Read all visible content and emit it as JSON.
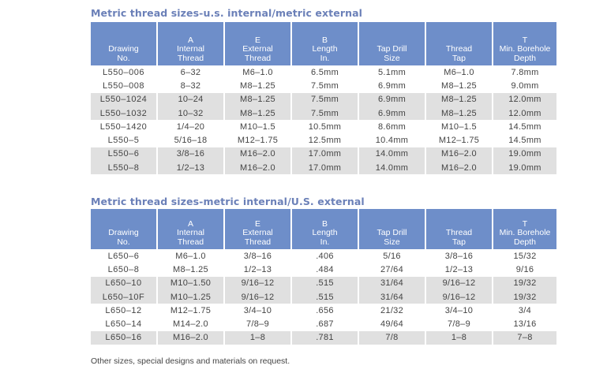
{
  "colors": {
    "title": "#6b80b8",
    "header_bg": "#6e8ec9",
    "row_shade": "#e0e0e0"
  },
  "tables": [
    {
      "title": "Metric thread sizes-u.s. internal/metric external",
      "columns": [
        [
          "Drawing",
          "No."
        ],
        [
          "A",
          "Internal",
          "Thread"
        ],
        [
          "E",
          "External",
          "Thread"
        ],
        [
          "B",
          "Length",
          "In."
        ],
        [
          "Tap Drill",
          "Size"
        ],
        [
          "Thread",
          "Tap"
        ],
        [
          "T",
          "Min. Borehole",
          "Depth"
        ]
      ],
      "rows": [
        [
          "L550-006",
          "6-32",
          "M6-1.0",
          "6.5mm",
          "5.1mm",
          "M6-1.0",
          "7.8mm"
        ],
        [
          "L550-008",
          "8-32",
          "M8-1.25",
          "7.5mm",
          "6.9mm",
          "M8-1.25",
          "9.0mm"
        ],
        [
          "L550-1024",
          "10-24",
          "M8-1.25",
          "7.5mm",
          "6.9mm",
          "M8-1.25",
          "12.0mm"
        ],
        [
          "L550-1032",
          "10-32",
          "M8-1.25",
          "7.5mm",
          "6.9mm",
          "M8-1.25",
          "12.0mm"
        ],
        [
          "L550-1420",
          "1/4-20",
          "M10-1.5",
          "10.5mm",
          "8.6mm",
          "M10-1.5",
          "14.5mm"
        ],
        [
          "L550-5",
          "5/16-18",
          "M12-1.75",
          "12.5mm",
          "10.4mm",
          "M12-1.75",
          "14.5mm"
        ],
        [
          "L550-6",
          "3/8-16",
          "M16-2.0",
          "17.0mm",
          "14.0mm",
          "M16-2.0",
          "19.0mm"
        ],
        [
          "L550-8",
          "1/2-13",
          "M16-2.0",
          "17.0mm",
          "14.0mm",
          "M16-2.0",
          "19.0mm"
        ]
      ],
      "shaded_rows": [
        2,
        3,
        6,
        7
      ]
    },
    {
      "title": "Metric thread sizes-metric internal/U.S. external",
      "columns": [
        [
          "Drawing",
          "No."
        ],
        [
          "A",
          "Internal",
          "Thread"
        ],
        [
          "E",
          "External",
          "Thread"
        ],
        [
          "B",
          "Length",
          "In."
        ],
        [
          "Tap Drill",
          "Size"
        ],
        [
          "Thread",
          "Tap"
        ],
        [
          "T",
          "Min. Borehole",
          "Depth"
        ]
      ],
      "rows": [
        [
          "L650-6",
          "M6-1.0",
          "3/8-16",
          ".406",
          "5/16",
          "3/8-16",
          "15/32"
        ],
        [
          "L650-8",
          "M8-1.25",
          "1/2-13",
          ".484",
          "27/64",
          "1/2-13",
          "9/16"
        ],
        [
          "L650-10",
          "M10-1.50",
          "9/16-12",
          ".515",
          "31/64",
          "9/16-12",
          "19/32"
        ],
        [
          "L650-10F",
          "M10-1.25",
          "9/16-12",
          ".515",
          "31/64",
          "9/16-12",
          "19/32"
        ],
        [
          "L650-12",
          "M12-1.75",
          "3/4-10",
          ".656",
          "21/32",
          "3/4-10",
          "3/4"
        ],
        [
          "L650-14",
          "M14-2.0",
          "7/8-9",
          ".687",
          "49/64",
          "7/8-9",
          "13/16"
        ],
        [
          "L650-16",
          "M16-2.0",
          "1-8",
          ".781",
          "7/8",
          "1-8",
          "7-8"
        ]
      ],
      "shaded_rows": [
        2,
        3,
        6
      ]
    }
  ],
  "footnote": "Other sizes, special designs and materials on request."
}
